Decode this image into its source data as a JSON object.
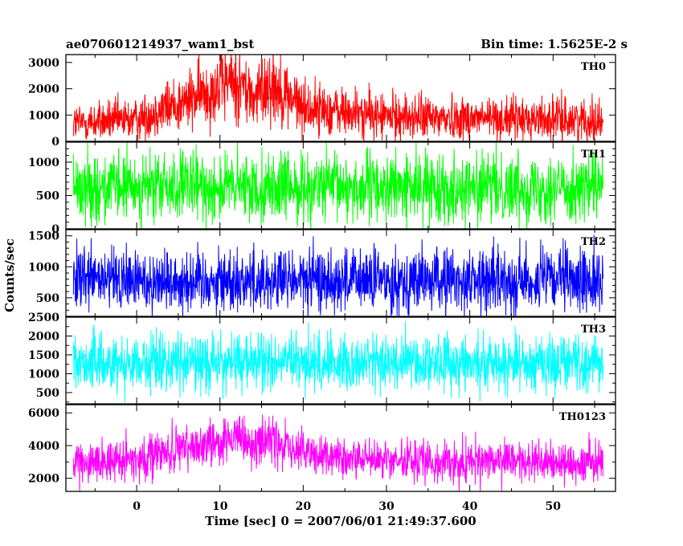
{
  "header": {
    "title": "ae070601214937_wam1_bst",
    "bin_time": "Bin time: 1.5625E-2 s"
  },
  "chart_data": {
    "type": "line",
    "xlabel": "Time [sec] 0 = 2007/06/01 21:49:37.600",
    "ylabel": "Counts/sec",
    "xlim": [
      -8.5,
      57.5
    ],
    "x_ticks": [
      0,
      10,
      20,
      30,
      40,
      50
    ],
    "x_data_range": [
      -7.6,
      56
    ],
    "grid": false,
    "panels": [
      {
        "name": "TH0",
        "color": "#ff0000",
        "ylim": [
          0,
          3300
        ],
        "y_ticks": [
          0,
          1000,
          2000,
          3000
        ],
        "profile": [
          [
            -7.6,
            700
          ],
          [
            0,
            820
          ],
          [
            3,
            1250
          ],
          [
            6,
            1500
          ],
          [
            9,
            2000
          ],
          [
            11,
            2300
          ],
          [
            12.5,
            2200
          ],
          [
            14,
            1600
          ],
          [
            16,
            2300
          ],
          [
            17.5,
            1900
          ],
          [
            20,
            1300
          ],
          [
            25,
            1100
          ],
          [
            30,
            950
          ],
          [
            35,
            900
          ],
          [
            40,
            900
          ],
          [
            45,
            850
          ],
          [
            50,
            850
          ],
          [
            56,
            800
          ]
        ],
        "spread": 380
      },
      {
        "name": "TH1",
        "color": "#00ff00",
        "ylim": [
          0,
          1300
        ],
        "y_ticks": [
          0,
          500,
          1000
        ],
        "profile": [
          [
            -7.6,
            620
          ],
          [
            56,
            620
          ]
        ],
        "spread": 260
      },
      {
        "name": "TH2",
        "color": "#0000ff",
        "ylim": [
          200,
          1600
        ],
        "y_ticks": [
          500,
          1000,
          1500
        ],
        "profile": [
          [
            -7.6,
            780
          ],
          [
            56,
            780
          ]
        ],
        "spread": 260
      },
      {
        "name": "TH3",
        "color": "#00ffff",
        "ylim": [
          200,
          2500
        ],
        "y_ticks": [
          500,
          1000,
          1500,
          2000,
          2500
        ],
        "profile": [
          [
            -7.6,
            1300
          ],
          [
            56,
            1300
          ]
        ],
        "spread": 380
      },
      {
        "name": "TH0123",
        "color": "#ff00ff",
        "ylim": [
          1200,
          6500
        ],
        "y_ticks": [
          2000,
          4000,
          6000
        ],
        "profile": [
          [
            -7.6,
            2900
          ],
          [
            0,
            3200
          ],
          [
            3,
            3500
          ],
          [
            6,
            3800
          ],
          [
            9,
            4300
          ],
          [
            11,
            4400
          ],
          [
            12.5,
            4200
          ],
          [
            14,
            3900
          ],
          [
            16,
            4500
          ],
          [
            17.5,
            4000
          ],
          [
            20,
            3500
          ],
          [
            25,
            3200
          ],
          [
            30,
            3100
          ],
          [
            40,
            3000
          ],
          [
            50,
            3000
          ],
          [
            56,
            2950
          ]
        ],
        "spread": 620
      }
    ]
  }
}
